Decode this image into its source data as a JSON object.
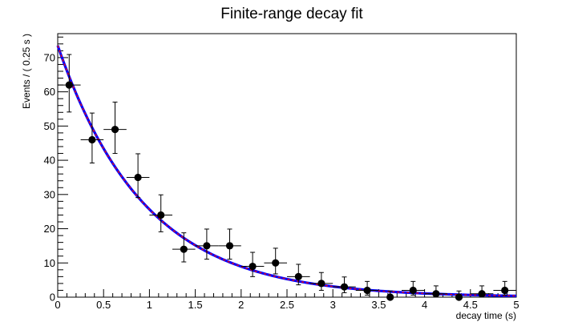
{
  "chart_data": {
    "type": "scatter",
    "title": "Finite-range decay fit",
    "xlabel": "decay time (s)",
    "ylabel": "Events / ( 0.25 s )",
    "xlim": [
      0,
      5
    ],
    "ylim": [
      0,
      77
    ],
    "x_ticks": [
      0,
      0.5,
      1,
      1.5,
      2,
      2.5,
      3,
      3.5,
      4,
      4.5,
      5
    ],
    "x_tick_labels": [
      "0",
      "0.5",
      "1",
      "1.5",
      "2",
      "2.5",
      "3",
      "3.5",
      "4",
      "4.5",
      "5"
    ],
    "y_ticks": [
      0,
      10,
      20,
      30,
      40,
      50,
      60,
      70
    ],
    "y_tick_labels": [
      "0",
      "10",
      "20",
      "30",
      "40",
      "50",
      "60",
      "70"
    ],
    "grid": false,
    "points": {
      "x": [
        0.125,
        0.375,
        0.625,
        0.875,
        1.125,
        1.375,
        1.625,
        1.875,
        2.125,
        2.375,
        2.625,
        2.875,
        3.125,
        3.375,
        3.625,
        3.875,
        4.125,
        4.375,
        4.625,
        4.875
      ],
      "y": [
        62,
        46,
        49,
        35,
        24,
        14,
        15,
        15,
        9,
        10,
        6,
        4,
        3,
        2,
        0,
        2,
        1,
        0,
        1,
        2
      ],
      "x_err": 0.125,
      "y_err_low": [
        7.9,
        6.8,
        7.0,
        5.9,
        4.9,
        3.7,
        3.9,
        3.9,
        3.0,
        3.2,
        2.4,
        2.0,
        1.7,
        1.4,
        0,
        1.4,
        1.0,
        0,
        1.0,
        1.4
      ],
      "y_err_high": [
        8.9,
        7.8,
        8.0,
        6.9,
        5.9,
        4.8,
        4.9,
        4.9,
        4.1,
        4.3,
        3.6,
        3.2,
        2.9,
        2.6,
        1.8,
        2.6,
        2.3,
        1.8,
        2.3,
        2.6
      ]
    },
    "fit_curve": {
      "model": "exponential",
      "amplitude": 73.5,
      "decay_constant": 0.95,
      "colors": [
        "#0000ff",
        "#ff0000"
      ]
    },
    "colors": {
      "points": "#000000",
      "axis": "#000000"
    }
  }
}
